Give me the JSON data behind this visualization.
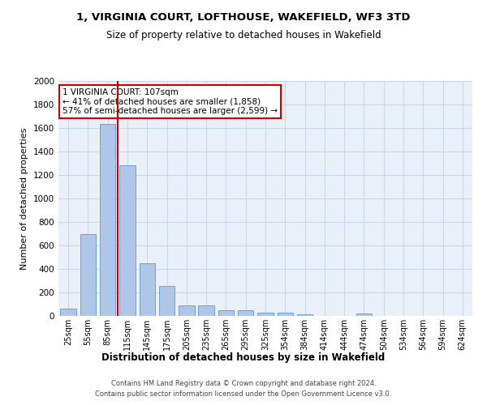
{
  "title": "1, VIRGINIA COURT, LOFTHOUSE, WAKEFIELD, WF3 3TD",
  "subtitle": "Size of property relative to detached houses in Wakefield",
  "xlabel": "Distribution of detached houses by size in Wakefield",
  "ylabel": "Number of detached properties",
  "categories": [
    "25sqm",
    "55sqm",
    "85sqm",
    "115sqm",
    "145sqm",
    "175sqm",
    "205sqm",
    "235sqm",
    "265sqm",
    "295sqm",
    "325sqm",
    "354sqm",
    "384sqm",
    "414sqm",
    "444sqm",
    "474sqm",
    "504sqm",
    "534sqm",
    "564sqm",
    "594sqm",
    "624sqm"
  ],
  "values": [
    65,
    695,
    1635,
    1285,
    445,
    255,
    90,
    90,
    50,
    45,
    30,
    30,
    15,
    0,
    0,
    20,
    0,
    0,
    0,
    0,
    0
  ],
  "bar_color": "#aec6e8",
  "bar_edge_color": "#5b9bd5",
  "grid_color": "#c8d4e8",
  "vline_color": "#cc0000",
  "vline_pos": 2.5,
  "annotation_text": "1 VIRGINIA COURT: 107sqm\n← 41% of detached houses are smaller (1,858)\n57% of semi-detached houses are larger (2,599) →",
  "annotation_box_color": "#ffffff",
  "annotation_box_edge": "#cc0000",
  "ylim": [
    0,
    2000
  ],
  "yticks": [
    0,
    200,
    400,
    600,
    800,
    1000,
    1200,
    1400,
    1600,
    1800,
    2000
  ],
  "footer1": "Contains HM Land Registry data © Crown copyright and database right 2024.",
  "footer2": "Contains public sector information licensed under the Open Government Licence v3.0.",
  "bg_color": "#ffffff",
  "plot_bg_color": "#eaf0f8"
}
